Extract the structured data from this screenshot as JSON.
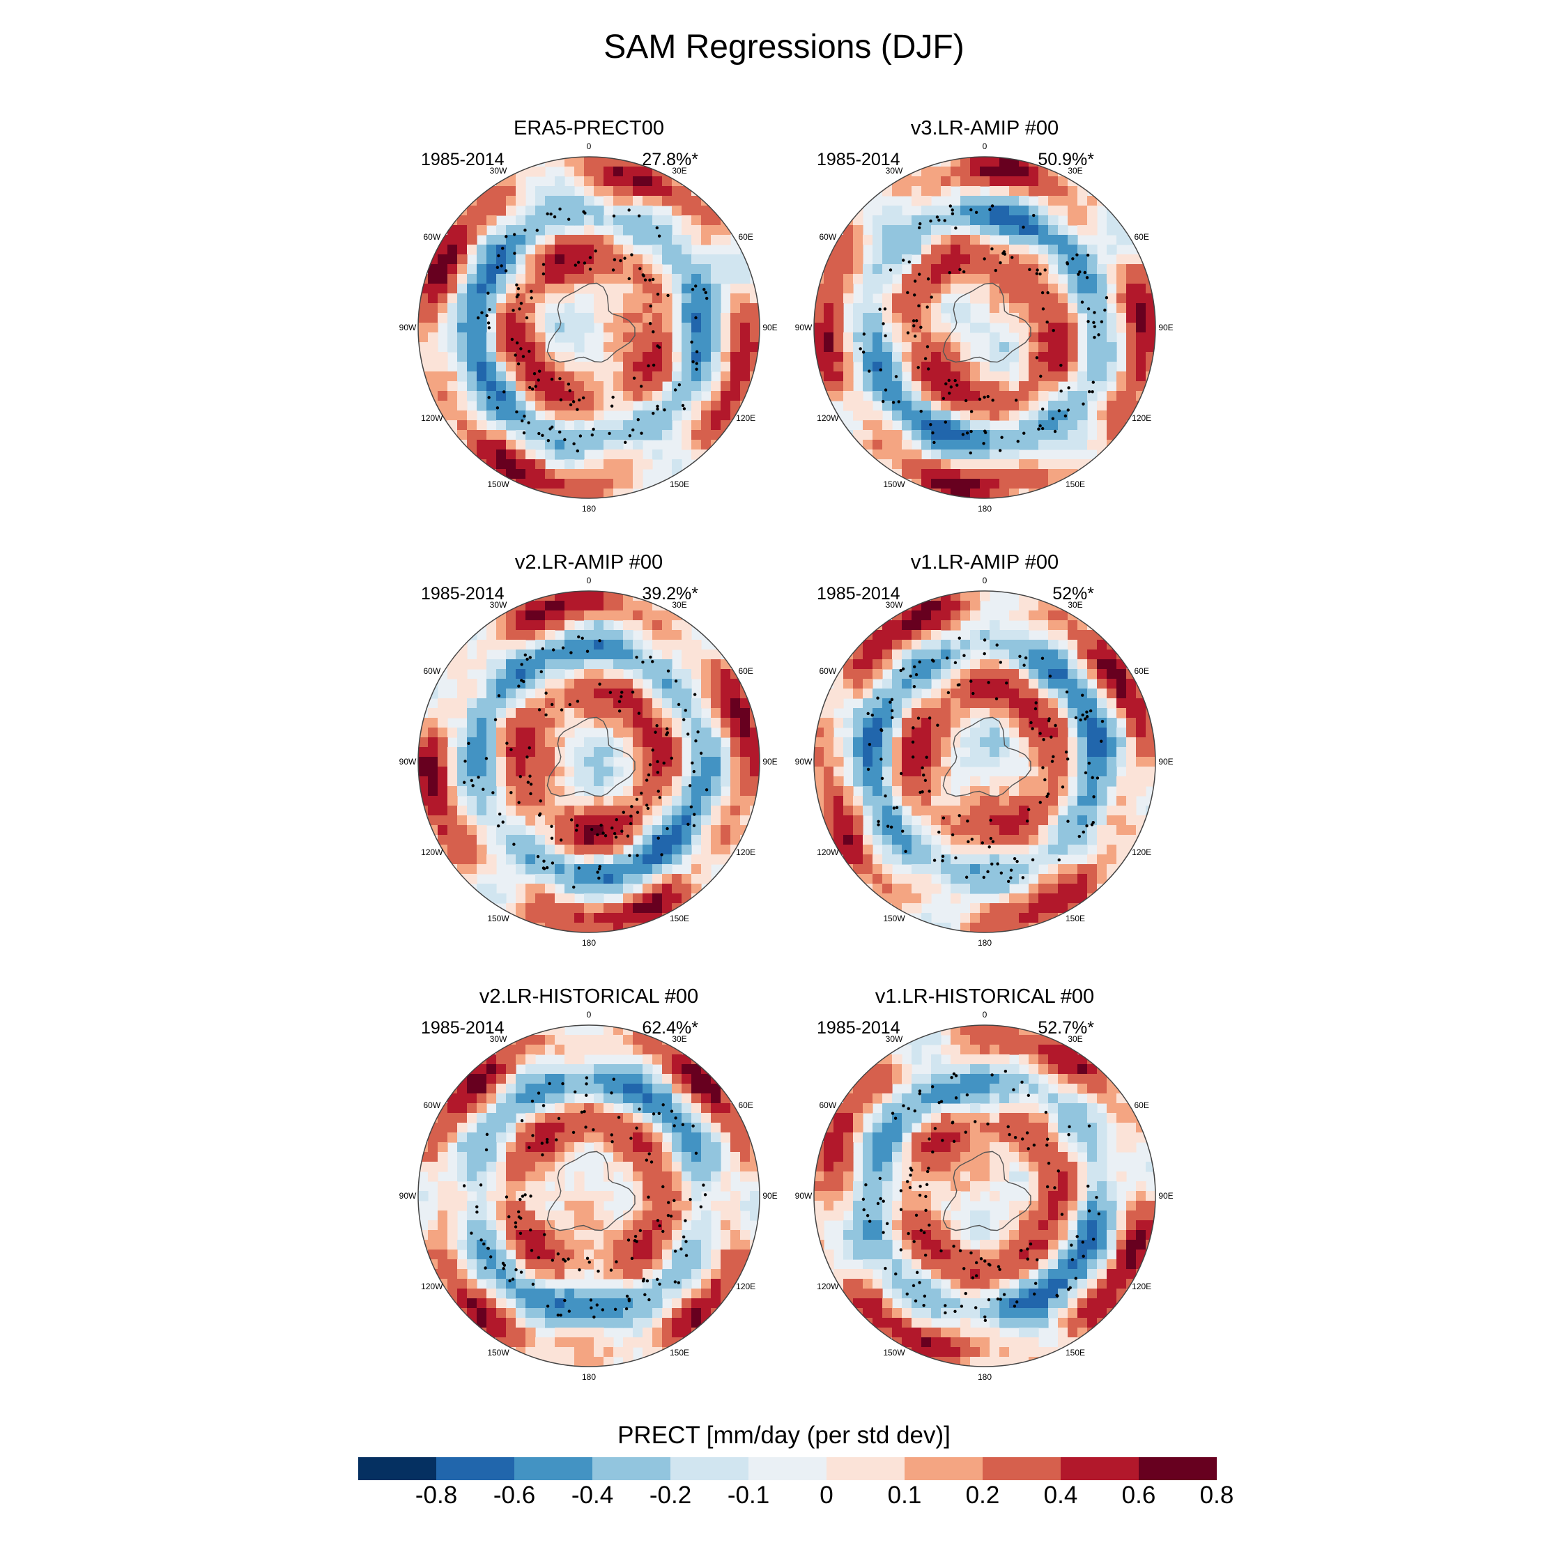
{
  "title": "SAM Regressions (DJF)",
  "colorbar": {
    "title": "PRECT [mm/day (per std dev)]",
    "levels": [
      "-0.8",
      "-0.6",
      "-0.4",
      "-0.2",
      "-0.1",
      "0",
      "0.1",
      "0.2",
      "0.4",
      "0.6",
      "0.8"
    ],
    "colors": [
      "#053061",
      "#2166ac",
      "#4393c3",
      "#92c5de",
      "#d1e5f0",
      "#eaf0f5",
      "#fbe3d8",
      "#f4a582",
      "#d6604d",
      "#b2182b",
      "#67001f"
    ]
  },
  "lon_labels": [
    "0",
    "30E",
    "60E",
    "90E",
    "120E",
    "150E",
    "180",
    "150W",
    "120W",
    "90W",
    "60W",
    "30W"
  ],
  "panels": [
    {
      "title": "ERA5-PRECT00",
      "years": "1985-2014",
      "pct": "27.8%*"
    },
    {
      "title": "v3.LR-AMIP  #00",
      "years": "1985-2014",
      "pct": "50.9%*"
    },
    {
      "title": "v2.LR-AMIP  #00",
      "years": "1985-2014",
      "pct": "39.2%*"
    },
    {
      "title": "v1.LR-AMIP  #00",
      "years": "1985-2014",
      "pct": "52%*"
    },
    {
      "title": "v2.LR-HISTORICAL  #00",
      "years": "1985-2014",
      "pct": "62.4%*"
    },
    {
      "title": "v1.LR-HISTORICAL  #00",
      "years": "1985-2014",
      "pct": "52.7%*"
    }
  ]
}
